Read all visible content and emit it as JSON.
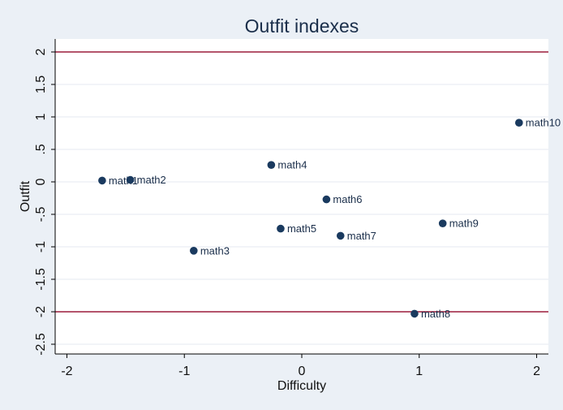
{
  "chart_data": {
    "type": "scatter",
    "title": "Outfit indexes",
    "xlabel": "Difficulty",
    "ylabel": "Outfit",
    "xlim": [
      -2.1,
      2.1
    ],
    "ylim": [
      -2.65,
      2.2
    ],
    "xticks": [
      -2,
      -1,
      0,
      1,
      2
    ],
    "xtick_labels": [
      "-2",
      "-1",
      "0",
      "1",
      "2"
    ],
    "yticks": [
      2,
      1.5,
      1,
      0.5,
      0,
      -0.5,
      -1,
      -1.5,
      -2,
      -2.5
    ],
    "ytick_labels": [
      "2",
      "1.5",
      "1",
      ".5",
      "0",
      "-.5",
      "-1",
      "-1.5",
      "-2",
      "-2.5"
    ],
    "grid": true,
    "reference_lines": [
      2,
      -2
    ],
    "colors": {
      "background": "#ebf0f6",
      "plot_background": "#ffffff",
      "grid": "#e4eaf1",
      "marker": "#1a3a5f",
      "reference_line": "#9b1b3a",
      "axis": "#000000"
    },
    "points": [
      {
        "label": "math1",
        "x": -1.7,
        "y": 0.02
      },
      {
        "label": "math2",
        "x": -1.46,
        "y": 0.03
      },
      {
        "label": "math3",
        "x": -0.92,
        "y": -1.06
      },
      {
        "label": "math4",
        "x": -0.26,
        "y": 0.26
      },
      {
        "label": "math5",
        "x": -0.18,
        "y": -0.72
      },
      {
        "label": "math6",
        "x": 0.21,
        "y": -0.27
      },
      {
        "label": "math7",
        "x": 0.33,
        "y": -0.83
      },
      {
        "label": "math8",
        "x": 0.96,
        "y": -2.03
      },
      {
        "label": "math9",
        "x": 1.2,
        "y": -0.64
      },
      {
        "label": "math10",
        "x": 1.85,
        "y": 0.91
      }
    ]
  }
}
